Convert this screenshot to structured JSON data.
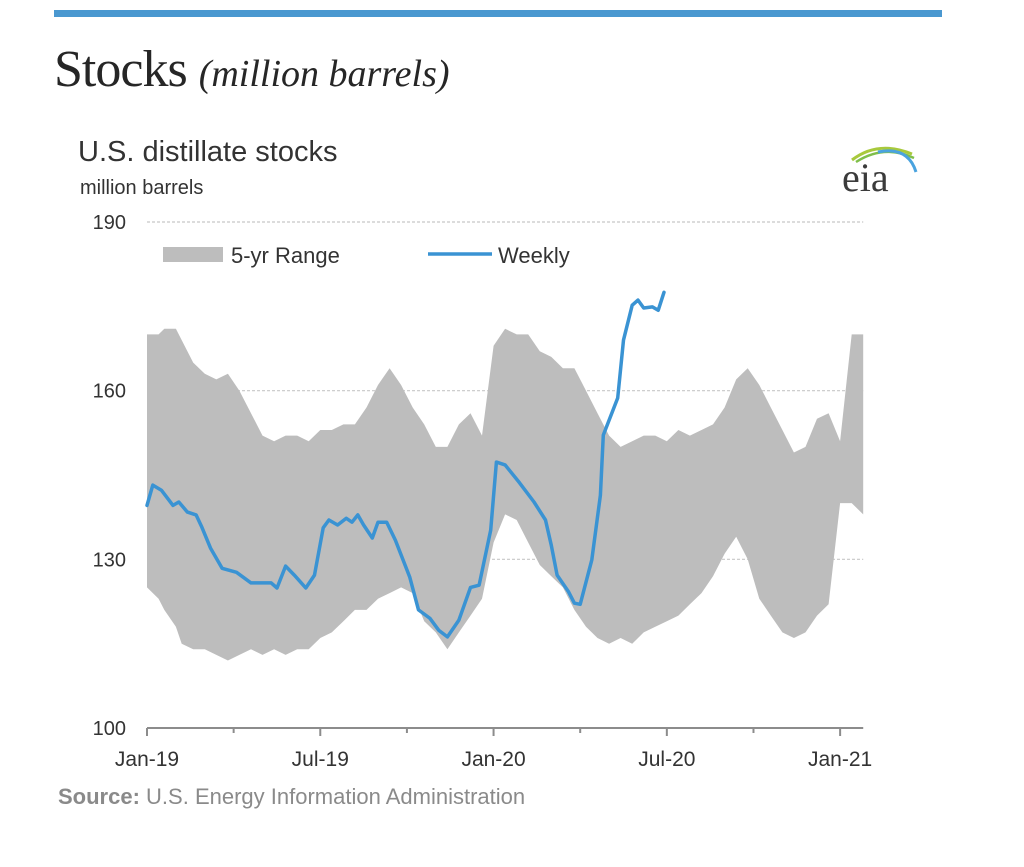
{
  "page": {
    "title": "Stocks",
    "title_sub": "(million barrels)",
    "accent_color": "#4a98d0"
  },
  "chart_data": {
    "type": "area",
    "title": "U.S. distillate stocks",
    "subtitle": "million barrels",
    "xlabel": "",
    "ylabel": "million barrels",
    "ylim": [
      100,
      190
    ],
    "yticks": [
      100,
      130,
      160,
      190
    ],
    "ytick_labels": [
      "100",
      "130",
      "160",
      "190"
    ],
    "x_unit": "months since Jan-2019",
    "xlim": [
      0,
      24.8
    ],
    "xticks": [
      0,
      3,
      6,
      9,
      12,
      15,
      18,
      21,
      24
    ],
    "xtick_labels": [
      {
        "at": 0,
        "label": "Jan-19"
      },
      {
        "at": 6,
        "label": "Jul-19"
      },
      {
        "at": 12,
        "label": "Jan-20"
      },
      {
        "at": 18,
        "label": "Jul-20"
      },
      {
        "at": 24,
        "label": "Jan-21"
      }
    ],
    "grid": "horizontal-dashed",
    "legend": {
      "placement": "top-left",
      "entries": [
        {
          "name": "5-yr Range",
          "kind": "band",
          "color": "#bdbdbd"
        },
        {
          "name": "Weekly",
          "kind": "line",
          "color": "#3a93d3"
        }
      ]
    },
    "series": [
      {
        "name": "5-yr Range",
        "kind": "band",
        "color": "#bdbdbd",
        "x": [
          0,
          0.4,
          0.6,
          1.0,
          1.2,
          1.6,
          2.0,
          2.4,
          2.8,
          3.2,
          3.6,
          4.0,
          4.4,
          4.8,
          5.2,
          5.6,
          6.0,
          6.4,
          6.8,
          7.2,
          7.6,
          8.0,
          8.4,
          8.8,
          9.2,
          9.6,
          10.0,
          10.4,
          10.8,
          11.2,
          11.6,
          12.0,
          12.4,
          12.8,
          13.2,
          13.6,
          14.0,
          14.4,
          14.8,
          15.2,
          15.6,
          16.0,
          16.4,
          16.8,
          17.2,
          17.6,
          18.0,
          18.4,
          18.8,
          19.2,
          19.6,
          20.0,
          20.4,
          20.8,
          21.2,
          21.6,
          22.0,
          22.4,
          22.8,
          23.2,
          23.6,
          24.0,
          24.4,
          24.8
        ],
        "high": [
          170,
          170,
          171,
          171,
          169,
          165,
          163,
          162,
          163,
          160,
          156,
          152,
          151,
          152,
          152,
          151,
          153,
          153,
          154,
          154,
          157,
          161,
          164,
          161,
          157,
          154,
          150,
          150,
          154,
          156,
          152,
          168,
          171,
          170,
          170,
          167,
          166,
          164,
          164,
          160,
          156,
          152,
          150,
          151,
          152,
          152,
          151,
          153,
          152,
          153,
          154,
          157,
          162,
          164,
          161,
          157,
          153,
          149,
          150,
          155,
          156,
          151,
          170,
          170
        ],
        "low": [
          125,
          123,
          121,
          118,
          115,
          114,
          114,
          113,
          112,
          113,
          114,
          113,
          114,
          113,
          114,
          114,
          116,
          117,
          119,
          121,
          121,
          123,
          124,
          125,
          124,
          119,
          117,
          114,
          117,
          120,
          123,
          133,
          138,
          137,
          133,
          129,
          127,
          125,
          121,
          118,
          116,
          115,
          116,
          115,
          117,
          118,
          119,
          120,
          122,
          124,
          127,
          131,
          134,
          130,
          123,
          120,
          117,
          116,
          117,
          120,
          122,
          140,
          140,
          138
        ]
      },
      {
        "name": "Weekly",
        "kind": "line",
        "color": "#3a93d3",
        "x": [
          0,
          0.2,
          0.5,
          0.9,
          1.1,
          1.4,
          1.7,
          1.9,
          2.2,
          2.6,
          3.1,
          3.6,
          4.3,
          4.5,
          4.8,
          5.1,
          5.5,
          5.8,
          6.1,
          6.3,
          6.6,
          6.9,
          7.1,
          7.3,
          7.5,
          7.8,
          8.0,
          8.3,
          8.6,
          9.1,
          9.4,
          9.8,
          10.1,
          10.4,
          10.8,
          11.2,
          11.5,
          11.9,
          12.1,
          12.4,
          12.9,
          13.4,
          13.8,
          14.0,
          14.2,
          14.6,
          14.8,
          15.0,
          15.4,
          15.7,
          15.8,
          16.3,
          16.5,
          16.8,
          17.0,
          17.2,
          17.5,
          17.7,
          17.9
        ],
        "values": [
          139.6,
          143.2,
          142.3,
          139.6,
          140.2,
          138.4,
          137.9,
          135.7,
          132.0,
          128.4,
          127.7,
          125.8,
          125.8,
          124.9,
          128.8,
          127.2,
          124.9,
          127.2,
          135.6,
          137.0,
          136.1,
          137.3,
          136.6,
          137.9,
          136.1,
          133.8,
          136.6,
          136.6,
          133.4,
          126.8,
          121.0,
          119.5,
          117.4,
          116.2,
          119.2,
          125.0,
          125.4,
          135.2,
          147.3,
          146.8,
          143.6,
          140.2,
          137.0,
          132.5,
          127.2,
          124.2,
          122.2,
          122.0,
          129.9,
          141.4,
          152.1,
          158.7,
          169.0,
          175.2,
          176.1,
          174.7,
          174.9,
          174.3,
          177.5
        ]
      }
    ],
    "source_label": "Source:",
    "source_text": "U.S. Energy Information Administration",
    "logo_text": "eia"
  }
}
